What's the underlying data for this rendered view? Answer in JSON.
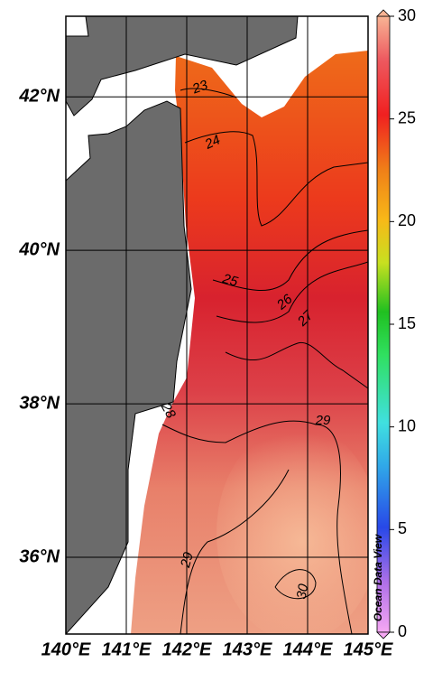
{
  "map": {
    "xlim": [
      140,
      145
    ],
    "ylim": [
      35,
      43.05
    ],
    "xticks": [
      {
        "value": 140,
        "label": "140°E"
      },
      {
        "value": 141,
        "label": "141°E"
      },
      {
        "value": 142,
        "label": "142°E"
      },
      {
        "value": 143,
        "label": "143°E"
      },
      {
        "value": 144,
        "label": "144°E"
      },
      {
        "value": 145,
        "label": "145°E"
      }
    ],
    "yticks": [
      {
        "value": 36,
        "label": "36°N"
      },
      {
        "value": 38,
        "label": "38°N"
      },
      {
        "value": 40,
        "label": "40°N"
      },
      {
        "value": 42,
        "label": "42°N"
      }
    ],
    "contour_labels": [
      "23",
      "24",
      "25",
      "26",
      "27",
      "28",
      "29",
      "29",
      "30"
    ]
  },
  "colorbar": {
    "range": [
      0,
      30
    ],
    "ticks": [
      0,
      5,
      10,
      15,
      20,
      25,
      30
    ]
  },
  "watermark": "Ocean Data View"
}
